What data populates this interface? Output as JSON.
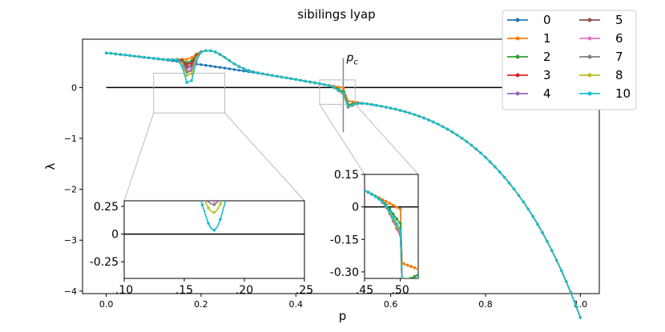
{
  "chart_data": {
    "type": "line",
    "title": "sibilings lyap",
    "xlabel": "p",
    "ylabel": "λ",
    "xlim": [
      -0.05,
      1.04
    ],
    "ylim": [
      -4.05,
      0.95
    ],
    "xticks": [
      0.0,
      0.2,
      0.4,
      0.6,
      0.8,
      1.0
    ],
    "xtick_labels": [
      "0.0",
      "0.2",
      "0.4",
      "0.6",
      "0.8",
      "1.0"
    ],
    "yticks": [
      0,
      -1,
      -2,
      -3,
      -4
    ],
    "ytick_labels": [
      "0",
      "−1",
      "−2",
      "−3",
      "−4"
    ],
    "pc_label": "p",
    "pc_sub": "c",
    "pc_value": 0.5,
    "grid": false,
    "legend": {
      "placement": "top-right",
      "columns": 2
    },
    "series": [
      {
        "name": "0",
        "color": "#1f77b4"
      },
      {
        "name": "1",
        "color": "#ff7f0e"
      },
      {
        "name": "2",
        "color": "#2ca02c"
      },
      {
        "name": "3",
        "color": "#d62728"
      },
      {
        "name": "4",
        "color": "#9467bd"
      },
      {
        "name": "5",
        "color": "#8c564b"
      },
      {
        "name": "6",
        "color": "#e377c2"
      },
      {
        "name": "7",
        "color": "#7f7f7f"
      },
      {
        "name": "8",
        "color": "#bcbd22"
      },
      {
        "name": "10",
        "color": "#17becf"
      }
    ],
    "inset_left": {
      "xlim": [
        0.1,
        0.25
      ],
      "ylim": [
        -0.4,
        0.3
      ],
      "xticks": [
        0.1,
        0.15,
        0.2,
        0.25
      ],
      "xtick_labels": [
        ".10",
        ".15",
        ".20",
        ".25"
      ],
      "yticks": [
        0.25,
        0,
        -0.25
      ],
      "ytick_labels": [
        "0.25",
        "0",
        "-0.25"
      ]
    },
    "inset_right": {
      "xlim": [
        0.45,
        0.525
      ],
      "ylim": [
        -0.33,
        0.15
      ],
      "xticks": [
        0.45,
        0.5
      ],
      "xtick_labels": [
        ".45",
        ".50"
      ],
      "yticks": [
        0.15,
        0,
        -0.15,
        -0.3
      ],
      "ytick_labels": [
        "0.15",
        "0",
        "-0.15",
        "-0.30"
      ]
    }
  }
}
